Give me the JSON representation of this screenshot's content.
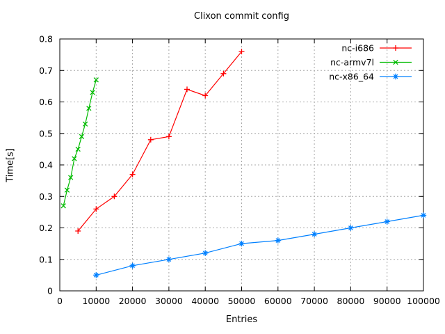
{
  "chart_data": {
    "type": "line",
    "title": "Clixon commit config",
    "xlabel": "Entries",
    "ylabel": "Time[s]",
    "xlim": [
      0,
      100000
    ],
    "ylim": [
      0,
      0.8
    ],
    "grid": true,
    "legend_position": "top-right-inside",
    "background_color": "#ffffff",
    "axis_color": "#000000",
    "grid_color": "#a8a8a8",
    "text_color": "#000000",
    "x_ticks": [
      0,
      10000,
      20000,
      30000,
      40000,
      50000,
      60000,
      70000,
      80000,
      90000,
      100000
    ],
    "x_tick_labels": [
      "0",
      "10000",
      "20000",
      "30000",
      "40000",
      "50000",
      "60000",
      "70000",
      "80000",
      "90000",
      "100000"
    ],
    "y_ticks": [
      0,
      0.1,
      0.2,
      0.3,
      0.4,
      0.5,
      0.6,
      0.7,
      0.8
    ],
    "y_tick_labels": [
      "0",
      "0.1",
      "0.2",
      "0.3",
      "0.4",
      "0.5",
      "0.6",
      "0.7",
      "0.8"
    ],
    "series": [
      {
        "name": "nc-i686",
        "color": "#ff0000",
        "marker": "plus",
        "x": [
          5000,
          10000,
          15000,
          20000,
          25000,
          30000,
          35000,
          40000,
          45000,
          50000
        ],
        "y": [
          0.19,
          0.26,
          0.3,
          0.37,
          0.48,
          0.49,
          0.64,
          0.62,
          0.69,
          0.76
        ]
      },
      {
        "name": "nc-armv7l",
        "color": "#00bb00",
        "marker": "cross",
        "x": [
          1000,
          2000,
          3000,
          4000,
          5000,
          6000,
          7000,
          8000,
          9000,
          10000
        ],
        "y": [
          0.27,
          0.32,
          0.36,
          0.42,
          0.45,
          0.49,
          0.53,
          0.58,
          0.63,
          0.67
        ]
      },
      {
        "name": "nc-x86_64",
        "color": "#0080ff",
        "marker": "asterisk",
        "x": [
          10000,
          20000,
          30000,
          40000,
          50000,
          60000,
          70000,
          80000,
          90000,
          100000
        ],
        "y": [
          0.05,
          0.08,
          0.1,
          0.12,
          0.15,
          0.16,
          0.18,
          0.2,
          0.22,
          0.24
        ]
      }
    ]
  }
}
